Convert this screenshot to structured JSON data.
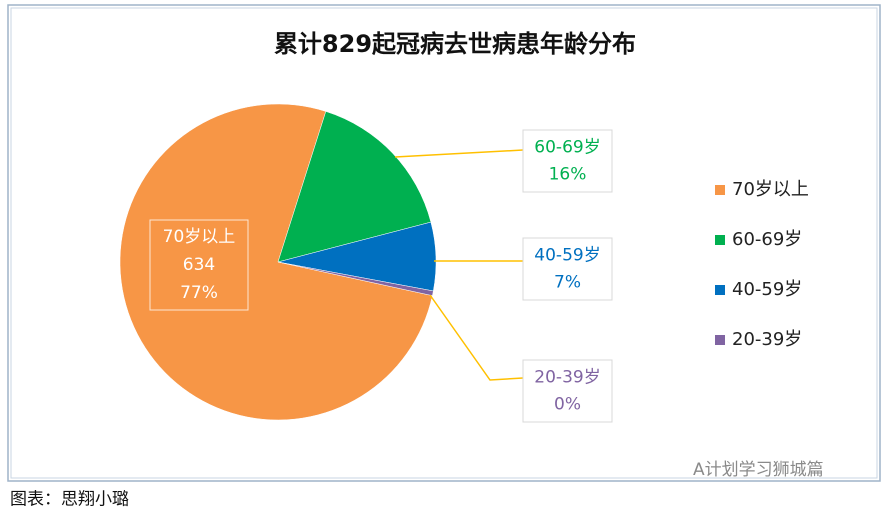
{
  "chart_data": {
    "type": "pie",
    "title": "累计829起冠病去世病患年龄分布",
    "categories": [
      "70岁以上",
      "60-69岁",
      "40-59岁",
      "20-39岁"
    ],
    "values": [
      634,
      133,
      58,
      4
    ],
    "value_labels": [
      "634",
      null,
      null,
      null
    ],
    "percent_labels": [
      "77%",
      "16%",
      "7%",
      "0%"
    ],
    "colors": [
      "#F79646",
      "#00B050",
      "#0070C0",
      "#8064A2"
    ],
    "legend": "right"
  },
  "caption": "图表：思翔小璐",
  "watermark": "A计划学习狮城篇"
}
